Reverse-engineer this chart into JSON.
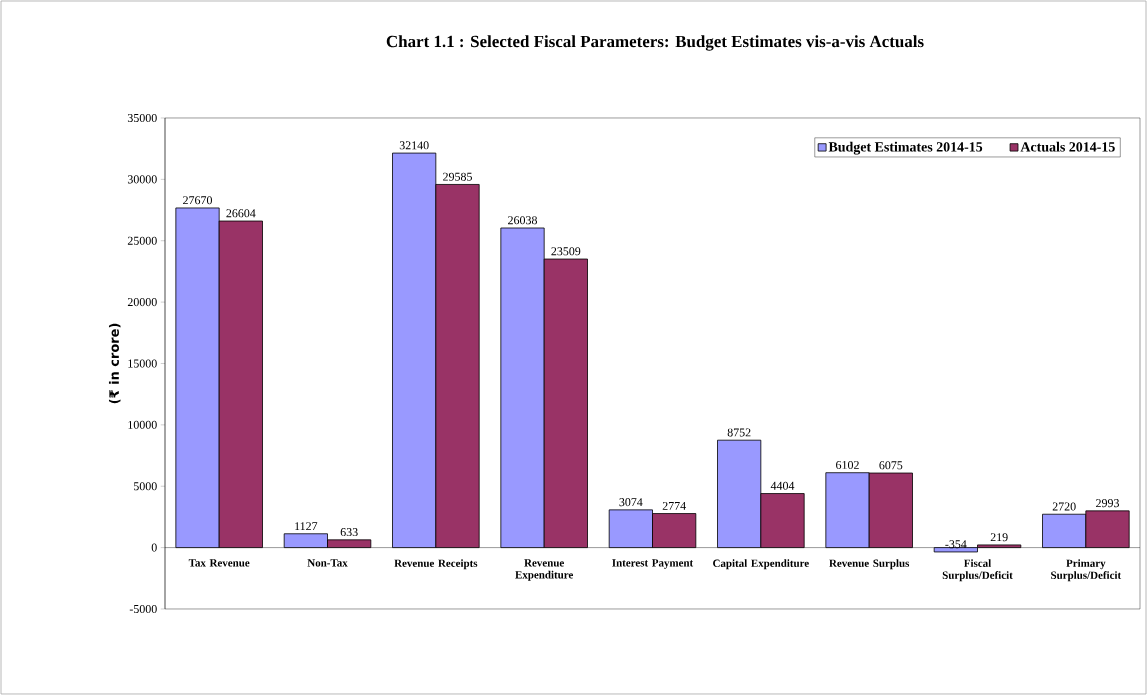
{
  "chart_data": {
    "type": "bar",
    "title": "Chart 1.1 : Selected Fiscal Parameters: Budget Estimates vis-a-vis Actuals",
    "ylabel": "(₹ in crore)",
    "categories": [
      "Tax Revenue",
      "Non-Tax",
      "Revenue Receipts",
      "Revenue Expenditure",
      "Interest Payment",
      "Capital Expenditure",
      "Revenue Surplus",
      "Fiscal Surplus/Deficit",
      "Primary Surplus/Deficit"
    ],
    "series": [
      {
        "name": "Budget Estimates 2014-15",
        "color": "#9999ff",
        "values": [
          27670,
          1127,
          32140,
          26038,
          3074,
          8752,
          6102,
          -354,
          2720
        ]
      },
      {
        "name": "Actuals 2014-15",
        "color": "#993366",
        "values": [
          26604,
          633,
          29585,
          23509,
          2774,
          4404,
          6075,
          219,
          2993
        ]
      }
    ],
    "ylim": [
      -5000,
      35000
    ],
    "yticks": [
      -5000,
      0,
      5000,
      10000,
      15000,
      20000,
      25000,
      30000,
      35000
    ],
    "data_labels": true,
    "legend": "top right",
    "grid": false
  }
}
